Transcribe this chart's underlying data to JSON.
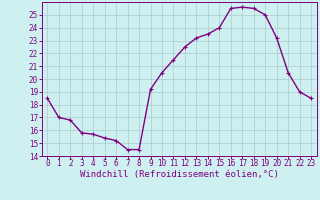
{
  "x": [
    0,
    1,
    2,
    3,
    4,
    5,
    6,
    7,
    8,
    9,
    10,
    11,
    12,
    13,
    14,
    15,
    16,
    17,
    18,
    19,
    20,
    21,
    22,
    23
  ],
  "y": [
    18.5,
    17.0,
    16.8,
    15.8,
    15.7,
    15.4,
    15.2,
    14.5,
    14.5,
    19.2,
    20.5,
    21.5,
    22.5,
    23.2,
    23.5,
    24.0,
    25.5,
    25.6,
    25.5,
    25.0,
    23.2,
    20.5,
    19.0,
    18.5
  ],
  "line_color": "#800080",
  "marker": "+",
  "marker_size": 3,
  "background_color": "#cff0f0",
  "grid_color": "#aacccc",
  "xlabel": "Windchill (Refroidissement éolien,°C)",
  "ylabel": "",
  "ylim": [
    14,
    26
  ],
  "xlim": [
    -0.5,
    23.5
  ],
  "yticks": [
    14,
    15,
    16,
    17,
    18,
    19,
    20,
    21,
    22,
    23,
    24,
    25
  ],
  "xticks": [
    0,
    1,
    2,
    3,
    4,
    5,
    6,
    7,
    8,
    9,
    10,
    11,
    12,
    13,
    14,
    15,
    16,
    17,
    18,
    19,
    20,
    21,
    22,
    23
  ],
  "tick_color": "#800080",
  "label_color": "#800080",
  "spine_color": "#800080",
  "line_width": 1.0,
  "tick_fontsize": 5.5,
  "xlabel_fontsize": 6.5
}
